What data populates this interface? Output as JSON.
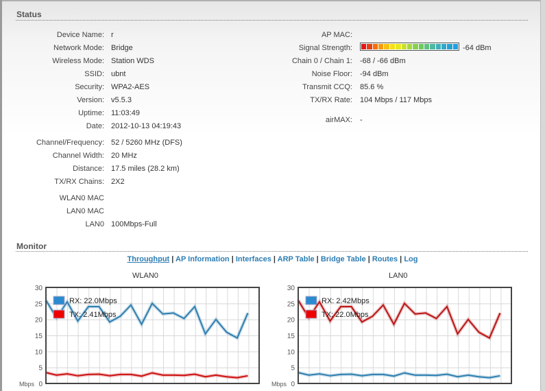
{
  "status": {
    "title": "Status",
    "left": [
      {
        "label": "Device Name:",
        "value": "r"
      },
      {
        "label": "Network Mode:",
        "value": "Bridge"
      },
      {
        "label": "Wireless Mode:",
        "value": "Station WDS"
      },
      {
        "label": "SSID:",
        "value": "ubnt"
      },
      {
        "label": "Security:",
        "value": "WPA2-AES"
      },
      {
        "label": "Version:",
        "value": "v5.5.3"
      },
      {
        "label": "Uptime:",
        "value": "11:03:49"
      },
      {
        "label": "Date:",
        "value": "2012-10-13 04:19:43"
      },
      {
        "label": "Channel/Frequency:",
        "value": "52 / 5260 MHz (DFS)"
      },
      {
        "label": "Channel Width:",
        "value": "20 MHz"
      },
      {
        "label": "Distance:",
        "value": "17.5 miles (28.2 km)"
      },
      {
        "label": "TX/RX Chains:",
        "value": "2X2"
      },
      {
        "label": "WLAN0 MAC",
        "value": ""
      },
      {
        "label": "LAN0 MAC",
        "value": ""
      },
      {
        "label": "LAN0",
        "value": "100Mbps-Full"
      }
    ],
    "right": [
      {
        "label": "AP MAC:",
        "value": ""
      },
      {
        "label": "Signal Strength:",
        "value": "-64 dBm"
      },
      {
        "label": "Chain 0 / Chain 1:",
        "value": "-68 / -66 dBm"
      },
      {
        "label": "Noise Floor:",
        "value": "-94 dBm"
      },
      {
        "label": "Transmit CCQ:",
        "value": "85.6 %"
      },
      {
        "label": "TX/RX Rate:",
        "value": "104 Mbps / 117 Mbps"
      },
      {
        "label": "airMAX:",
        "value": "-"
      }
    ],
    "signal_level_fraction": 1.0,
    "signal_colors": [
      "#e01818",
      "#e84010",
      "#f07010",
      "#f59a10",
      "#f8c010",
      "#f8e010",
      "#e8e820",
      "#c8e030",
      "#a8d840",
      "#88d050",
      "#70c860",
      "#60c080",
      "#50b8a0",
      "#40b0b8",
      "#30a8c8",
      "#28a0d0",
      "#20a0e0"
    ]
  },
  "monitor": {
    "title": "Monitor",
    "links": [
      "Throughput",
      "AP Information",
      "Interfaces",
      "ARP Table",
      "Bridge Table",
      "Routes",
      "Log"
    ],
    "separator": " | "
  },
  "chart_data": [
    {
      "type": "line",
      "title": "WLAN0",
      "ylabel": "Mbps",
      "ylim": [
        0,
        30
      ],
      "yticks": [
        "0",
        "5",
        "10",
        "15",
        "20",
        "25",
        "30"
      ],
      "grid": true,
      "legend": "top-left",
      "series": [
        {
          "name": "RX: 22.0Mbps",
          "color": "#2e7fb0",
          "legend_color": "#2b8ad0",
          "values": [
            26,
            20.5,
            25.5,
            19.5,
            24,
            24,
            19.2,
            21,
            24.5,
            18.5,
            25,
            21.7,
            22,
            20.3,
            24,
            15.5,
            20,
            16,
            14.2,
            22
          ]
        },
        {
          "name": "TX: 2.41Mbps",
          "color": "#cc1111",
          "legend_color": "#ee0000",
          "values": [
            3.4,
            2.6,
            3.0,
            2.4,
            2.8,
            2.9,
            2.4,
            2.8,
            2.8,
            2.3,
            3.3,
            2.6,
            2.6,
            2.5,
            2.9,
            2.1,
            2.6,
            2.1,
            1.8,
            2.4
          ]
        }
      ]
    },
    {
      "type": "line",
      "title": "LAN0",
      "ylabel": "Mbps",
      "ylim": [
        0,
        30
      ],
      "yticks": [
        "0",
        "5",
        "10",
        "15",
        "20",
        "25",
        "30"
      ],
      "grid": true,
      "legend": "top-left",
      "series": [
        {
          "name": "RX: 2.42Mbps",
          "color": "#2e7fb0",
          "legend_color": "#2b8ad0",
          "values": [
            3.4,
            2.6,
            3.0,
            2.4,
            2.8,
            2.9,
            2.4,
            2.8,
            2.8,
            2.3,
            3.3,
            2.6,
            2.6,
            2.5,
            2.9,
            2.1,
            2.6,
            2.1,
            1.8,
            2.4
          ]
        },
        {
          "name": "TX: 22.0Mbps",
          "color": "#bb1515",
          "legend_color": "#ee0000",
          "values": [
            26,
            20.5,
            25.5,
            19.5,
            24,
            24,
            19.2,
            21,
            24.5,
            18.5,
            25,
            21.7,
            22,
            20.3,
            24,
            15.5,
            20,
            16,
            14.2,
            22
          ]
        }
      ]
    }
  ]
}
